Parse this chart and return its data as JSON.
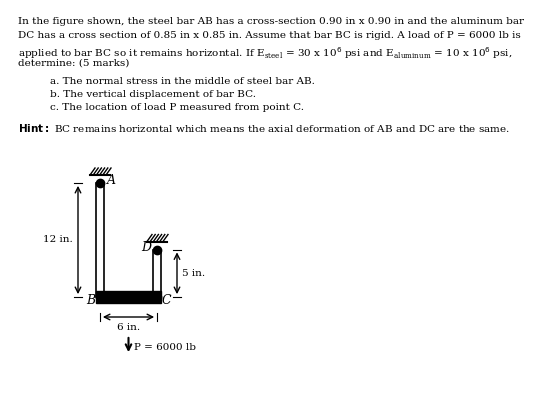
{
  "title_text": "In the figure shown, the steel bar AB has a cross-section 0.90 in x 0.90 in and the aluminum bar\nDC has a cross section of 0.85 in x 0.85 in. Assume that bar BC is rigid. A load of P = 6000 lb is\napplied to bar BC so it remains horizontal. If Eₑₜₑₑₗ = 30 x 10⁶ psi and Eₐₗᵤₘᵢₙᵤₘ = 10 x 10⁶ psi,\ndetermine: (5 marks)",
  "items": [
    "a. The normal stress in the middle of steel bar AB.",
    "b. The vertical displacement of bar BC.",
    "c. The location of load P measured from point C."
  ],
  "hint": "Hint: BC remains horizontal which means the axial deformation of AB and DC are the same.",
  "fig_bg": "#ffffff",
  "bar_color": "#000000",
  "hatch_color": "#000000",
  "label_A": "A",
  "label_B": "B",
  "label_C": "C",
  "label_D": "D",
  "dim_12": "12 in.",
  "dim_5": "5 in.",
  "dim_6": "6 in.",
  "load_label": "P = 6000 lb"
}
